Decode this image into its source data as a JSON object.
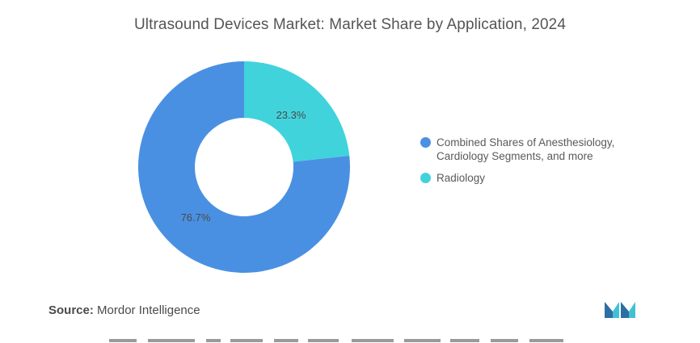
{
  "title": "Ultrasound Devices Market: Market Share by Application, 2024",
  "source_label": "Source:",
  "source_value": "Mordor Intelligence",
  "logo_icon": "mordor-intelligence-logo-icon",
  "colors": {
    "series_1": "#4A90E2",
    "series_2": "#41D3DC",
    "logo_dark": "#2B6FA3",
    "logo_light": "#3FC1D3"
  },
  "chart_data": {
    "type": "pie",
    "variant": "donut",
    "title": "Ultrasound Devices Market: Market Share by Application, 2024",
    "legend_position": "right",
    "slices": [
      {
        "name": "Combined Shares of Anesthesiology, Cardiology Segments, and more",
        "value": 76.7,
        "label": "76.7%",
        "color": "#4A90E2"
      },
      {
        "name": "Radiology",
        "value": 23.3,
        "label": "23.3%",
        "color": "#41D3DC"
      }
    ]
  }
}
